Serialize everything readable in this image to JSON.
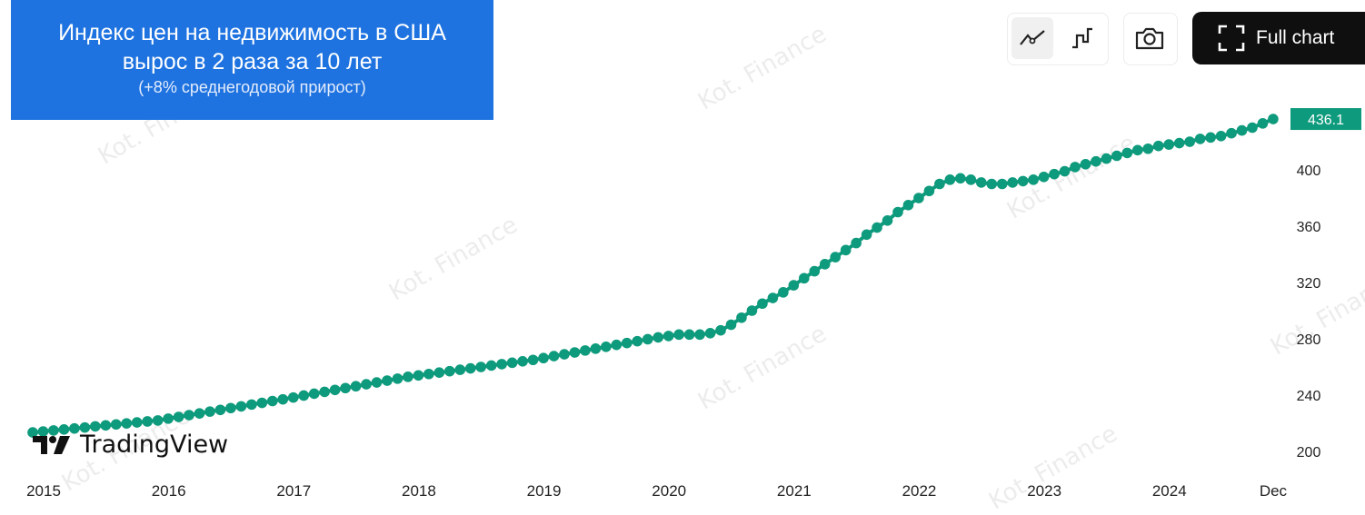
{
  "title": {
    "line1": "Индекс цен на недвижимость в США",
    "line2": "вырос в 2 раза за 10 лет",
    "line3": "(+8% среднегодовой прирост)"
  },
  "toolbar": {
    "line_style_icon": "line-chart-icon",
    "step_style_icon": "step-line-icon",
    "screenshot_icon": "camera-icon",
    "full_chart_label": "Full chart"
  },
  "branding": {
    "logo_text": "TradingView",
    "watermark": "Kot. Finance"
  },
  "colors": {
    "series": "#0e9a7c",
    "title_bg": "#1f73e0",
    "last_value_bg": "#0e9a7c"
  },
  "chart_data": {
    "type": "scatter",
    "frequency": "monthly",
    "x_start": "2015-01",
    "x_end": "2024-12",
    "x_tick_labels": [
      "2015",
      "2016",
      "2017",
      "2018",
      "2019",
      "2020",
      "2021",
      "2022",
      "2023",
      "2024",
      "Dec"
    ],
    "y_tick_labels": [
      "200",
      "240",
      "280",
      "320",
      "360",
      "400",
      "436.1"
    ],
    "ylim": [
      190,
      445
    ],
    "last_value": "436.1",
    "grid": false,
    "values": [
      213.5,
      214.2,
      214.9,
      215.6,
      216.3,
      217.0,
      217.8,
      218.5,
      219.2,
      219.9,
      220.6,
      221.3,
      222,
      223.3,
      224.5,
      225.8,
      227,
      228.3,
      229.5,
      230.8,
      232,
      233.3,
      234.5,
      235.8,
      237,
      238.3,
      239.7,
      241,
      242.3,
      243.7,
      245,
      246.3,
      247.7,
      249,
      250.3,
      251.7,
      253,
      254,
      255,
      256,
      257,
      258,
      259,
      260,
      261,
      262,
      263,
      264,
      265,
      266.3,
      267.7,
      269,
      270.3,
      271.7,
      273,
      274.3,
      275.7,
      277,
      278.3,
      279.7,
      281,
      282,
      283,
      283,
      283,
      284,
      286,
      290,
      295,
      300,
      305,
      309,
      313,
      318,
      323,
      328,
      333,
      338,
      343,
      348,
      354,
      359,
      364,
      370,
      375,
      380,
      385,
      390,
      393,
      394,
      393,
      391,
      390,
      390,
      391,
      392,
      393,
      395,
      397,
      399,
      402,
      404,
      406,
      408,
      410,
      412,
      414,
      415,
      417,
      418,
      419,
      420,
      422,
      423,
      424,
      426,
      428,
      430,
      433,
      436.1
    ]
  }
}
